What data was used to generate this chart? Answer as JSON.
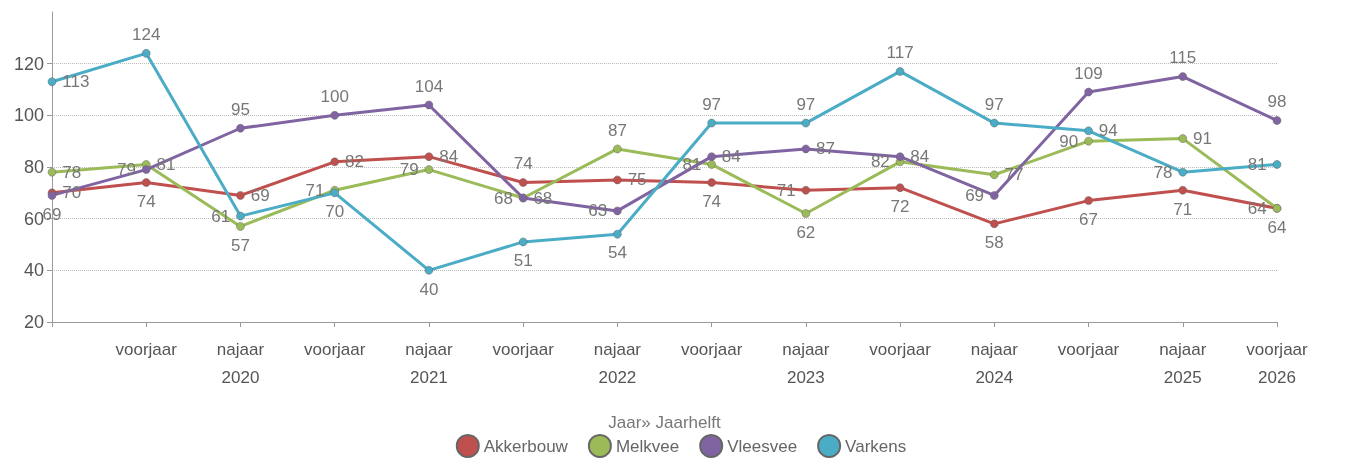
{
  "chart_data": {
    "type": "line",
    "categories": [
      null,
      "voorjaar 2020",
      "najaar",
      "voorjaar 2021",
      "najaar",
      "voorjaar 2022",
      "najaar",
      "voorjaar 2023",
      "najaar",
      "voorjaar 2024",
      "najaar",
      "voorjaar 2025",
      "najaar",
      "voorjaar 2026"
    ],
    "series": [
      {
        "name": "Akkerbouw",
        "color": "#c0504d",
        "values": [
          70,
          74,
          69,
          82,
          84,
          74,
          75,
          74,
          71,
          72,
          58,
          67,
          71,
          64
        ]
      },
      {
        "name": "Melkvee",
        "color": "#9bbb59",
        "values": [
          78,
          81,
          57,
          71,
          79,
          68,
          87,
          81,
          62,
          82,
          77,
          90,
          91,
          64
        ]
      },
      {
        "name": "Vleesvee",
        "color": "#8064a2",
        "values": [
          69,
          79,
          95,
          100,
          104,
          68,
          63,
          84,
          87,
          84,
          69,
          109,
          115,
          98
        ]
      },
      {
        "name": "Varkens",
        "color": "#4bacc6",
        "values": [
          113,
          124,
          61,
          70,
          40,
          51,
          54,
          97,
          97,
          117,
          97,
          94,
          78,
          81
        ]
      }
    ],
    "xlabel": "Jaar» Jaarhelft",
    "ylim": [
      20,
      140
    ],
    "yticks": [
      20,
      40,
      60,
      80,
      100,
      120
    ],
    "grid": "y",
    "legend": "bottom",
    "marker": "circle",
    "line_style": "solid",
    "data_labels": true
  }
}
